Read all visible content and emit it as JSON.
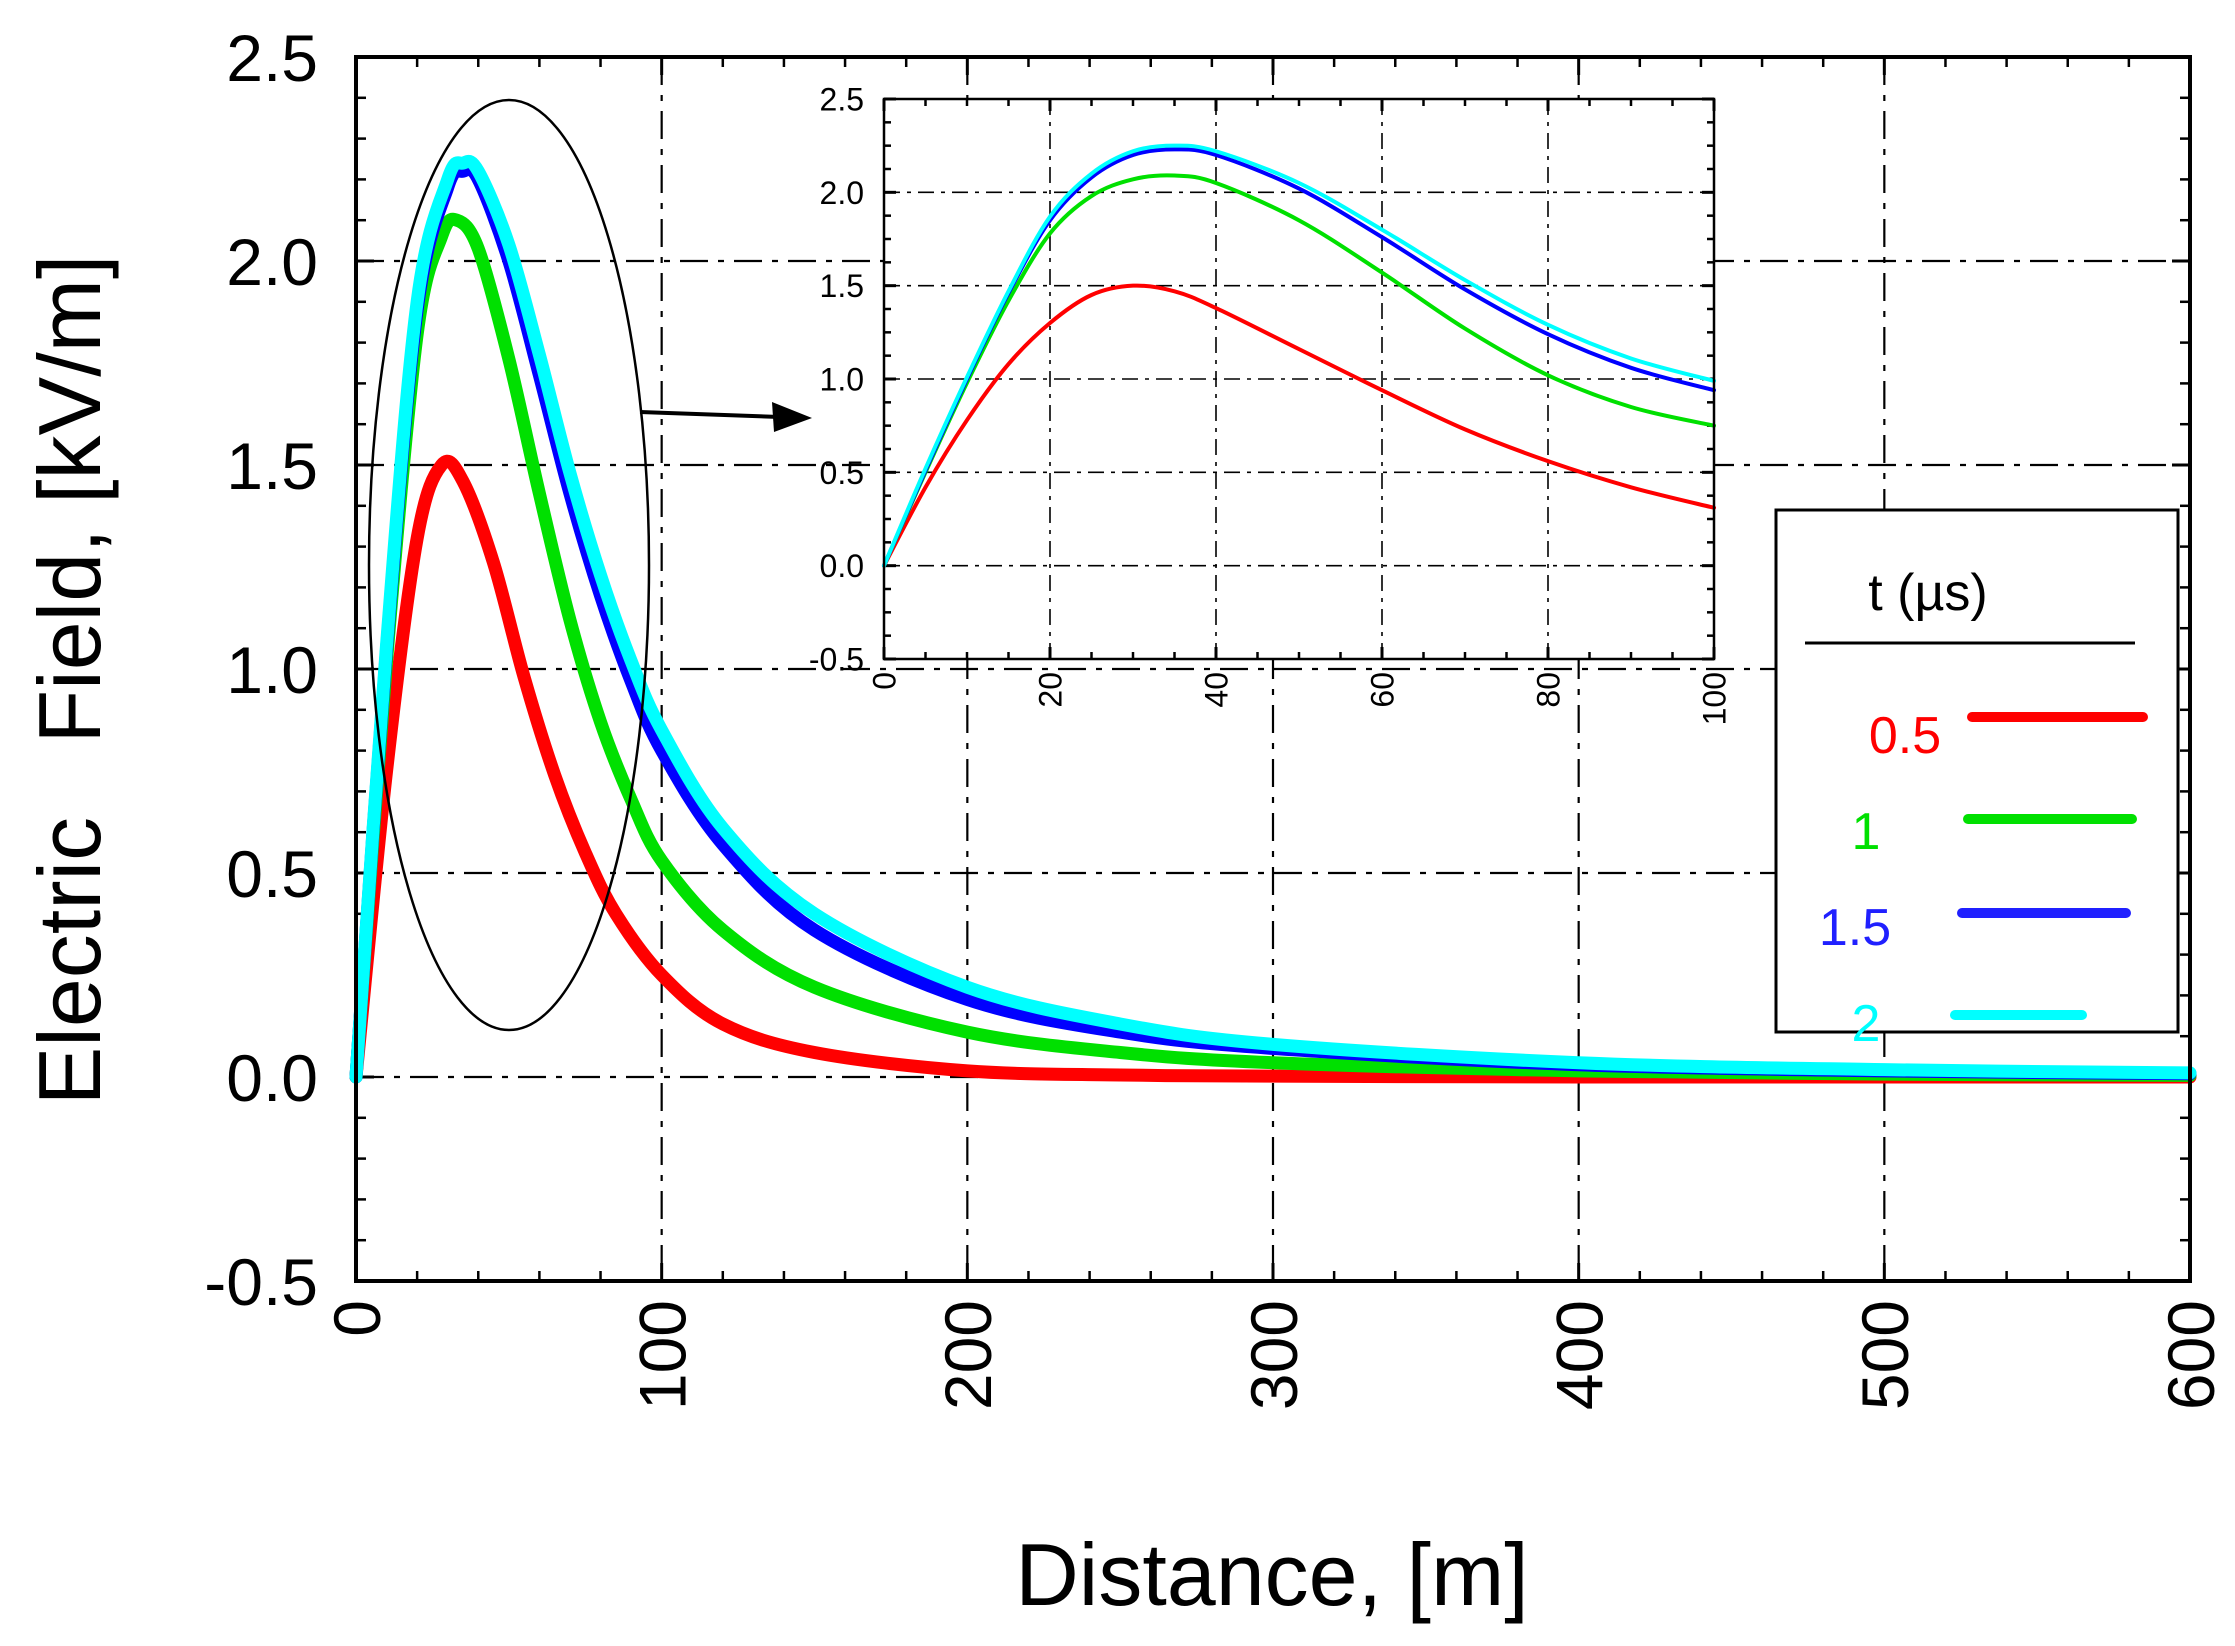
{
  "chart_data": [
    {
      "id": "main",
      "type": "line",
      "xlabel": "Distance, [m]",
      "ylabel": "Electric   Field, [kV/m]",
      "xlim": [
        0,
        600
      ],
      "ylim": [
        -0.5,
        2.5
      ],
      "xticks": [
        "0",
        "100",
        "200",
        "300",
        "400",
        "500",
        "600"
      ],
      "yticks": [
        "-0.5",
        "0.0",
        "0.5",
        "1.0",
        "1.5",
        "2.0",
        "2.5"
      ],
      "grid": true,
      "series": [
        {
          "name": "0.5",
          "color": "#ff0000",
          "x": [
            0,
            10,
            20,
            28,
            35,
            45,
            55,
            65,
            75,
            85,
            100,
            120,
            150,
            200,
            250,
            300,
            400,
            500,
            600
          ],
          "y": [
            0,
            0.75,
            1.32,
            1.5,
            1.46,
            1.26,
            0.98,
            0.74,
            0.55,
            0.4,
            0.25,
            0.13,
            0.06,
            0.015,
            0.005,
            0.002,
            0,
            0,
            0
          ]
        },
        {
          "name": "1",
          "color": "#00e000",
          "x": [
            0,
            10,
            20,
            28,
            33,
            40,
            50,
            60,
            70,
            80,
            90,
            100,
            120,
            150,
            200,
            250,
            300,
            400,
            500,
            600
          ],
          "y": [
            0,
            1.02,
            1.82,
            2.06,
            2.1,
            2.03,
            1.76,
            1.43,
            1.12,
            0.87,
            0.68,
            0.53,
            0.36,
            0.22,
            0.11,
            0.06,
            0.035,
            0.015,
            0.007,
            0.004
          ]
        },
        {
          "name": "1.5",
          "color": "#0000ff",
          "x": [
            0,
            10,
            20,
            30,
            35,
            40,
            50,
            60,
            70,
            80,
            90,
            100,
            120,
            150,
            200,
            250,
            300,
            400,
            500,
            600
          ],
          "y": [
            0,
            1.05,
            1.88,
            2.18,
            2.22,
            2.2,
            2.0,
            1.72,
            1.43,
            1.18,
            0.97,
            0.8,
            0.57,
            0.36,
            0.19,
            0.11,
            0.07,
            0.03,
            0.015,
            0.008
          ]
        },
        {
          "name": "2",
          "color": "#00ffff",
          "x": [
            0,
            10,
            20,
            30,
            35,
            40,
            50,
            60,
            70,
            80,
            90,
            100,
            120,
            150,
            200,
            250,
            300,
            400,
            500,
            600
          ],
          "y": [
            0,
            1.06,
            1.9,
            2.2,
            2.24,
            2.22,
            2.04,
            1.77,
            1.48,
            1.23,
            1.02,
            0.85,
            0.61,
            0.4,
            0.22,
            0.13,
            0.08,
            0.035,
            0.018,
            0.01
          ]
        }
      ]
    },
    {
      "id": "inset",
      "type": "line",
      "xlim": [
        0,
        100
      ],
      "ylim": [
        -0.5,
        2.5
      ],
      "xticks": [
        "0",
        "20",
        "40",
        "60",
        "80",
        "100"
      ],
      "yticks": [
        "-0.5",
        "0.0",
        "0.5",
        "1.0",
        "1.5",
        "2.0",
        "2.5"
      ],
      "grid": true,
      "series": [
        {
          "name": "0.5",
          "color": "#ff0000",
          "x": [
            0,
            5,
            10,
            15,
            20,
            25,
            30,
            35,
            40,
            50,
            60,
            70,
            80,
            90,
            100
          ],
          "y": [
            0,
            0.42,
            0.78,
            1.08,
            1.3,
            1.45,
            1.5,
            1.47,
            1.38,
            1.16,
            0.94,
            0.73,
            0.56,
            0.42,
            0.31
          ]
        },
        {
          "name": "1",
          "color": "#00e000",
          "x": [
            0,
            5,
            10,
            15,
            20,
            25,
            30,
            35,
            40,
            50,
            60,
            70,
            80,
            90,
            100
          ],
          "y": [
            0,
            0.5,
            0.98,
            1.42,
            1.78,
            1.98,
            2.07,
            2.09,
            2.05,
            1.85,
            1.57,
            1.27,
            1.02,
            0.85,
            0.75
          ]
        },
        {
          "name": "1.5",
          "color": "#0000ff",
          "x": [
            0,
            5,
            10,
            15,
            20,
            25,
            30,
            35,
            40,
            50,
            60,
            70,
            80,
            90,
            100
          ],
          "y": [
            0,
            0.51,
            1.0,
            1.46,
            1.85,
            2.08,
            2.2,
            2.23,
            2.2,
            2.02,
            1.76,
            1.48,
            1.24,
            1.06,
            0.94
          ]
        },
        {
          "name": "2",
          "color": "#00ffff",
          "x": [
            0,
            5,
            10,
            15,
            20,
            25,
            30,
            35,
            40,
            50,
            60,
            70,
            80,
            90,
            100
          ],
          "y": [
            0,
            0.52,
            1.01,
            1.47,
            1.87,
            2.1,
            2.22,
            2.25,
            2.22,
            2.05,
            1.8,
            1.53,
            1.29,
            1.11,
            0.99
          ]
        }
      ]
    }
  ],
  "legend": {
    "title": "t (µs)",
    "placement": "right",
    "entries": [
      {
        "label": "0.5",
        "color": "#ff0000"
      },
      {
        "label": "1",
        "color": "#00e000"
      },
      {
        "label": "1.5",
        "color": "#2020ff"
      },
      {
        "label": "2",
        "color": "#00ffff"
      }
    ]
  }
}
